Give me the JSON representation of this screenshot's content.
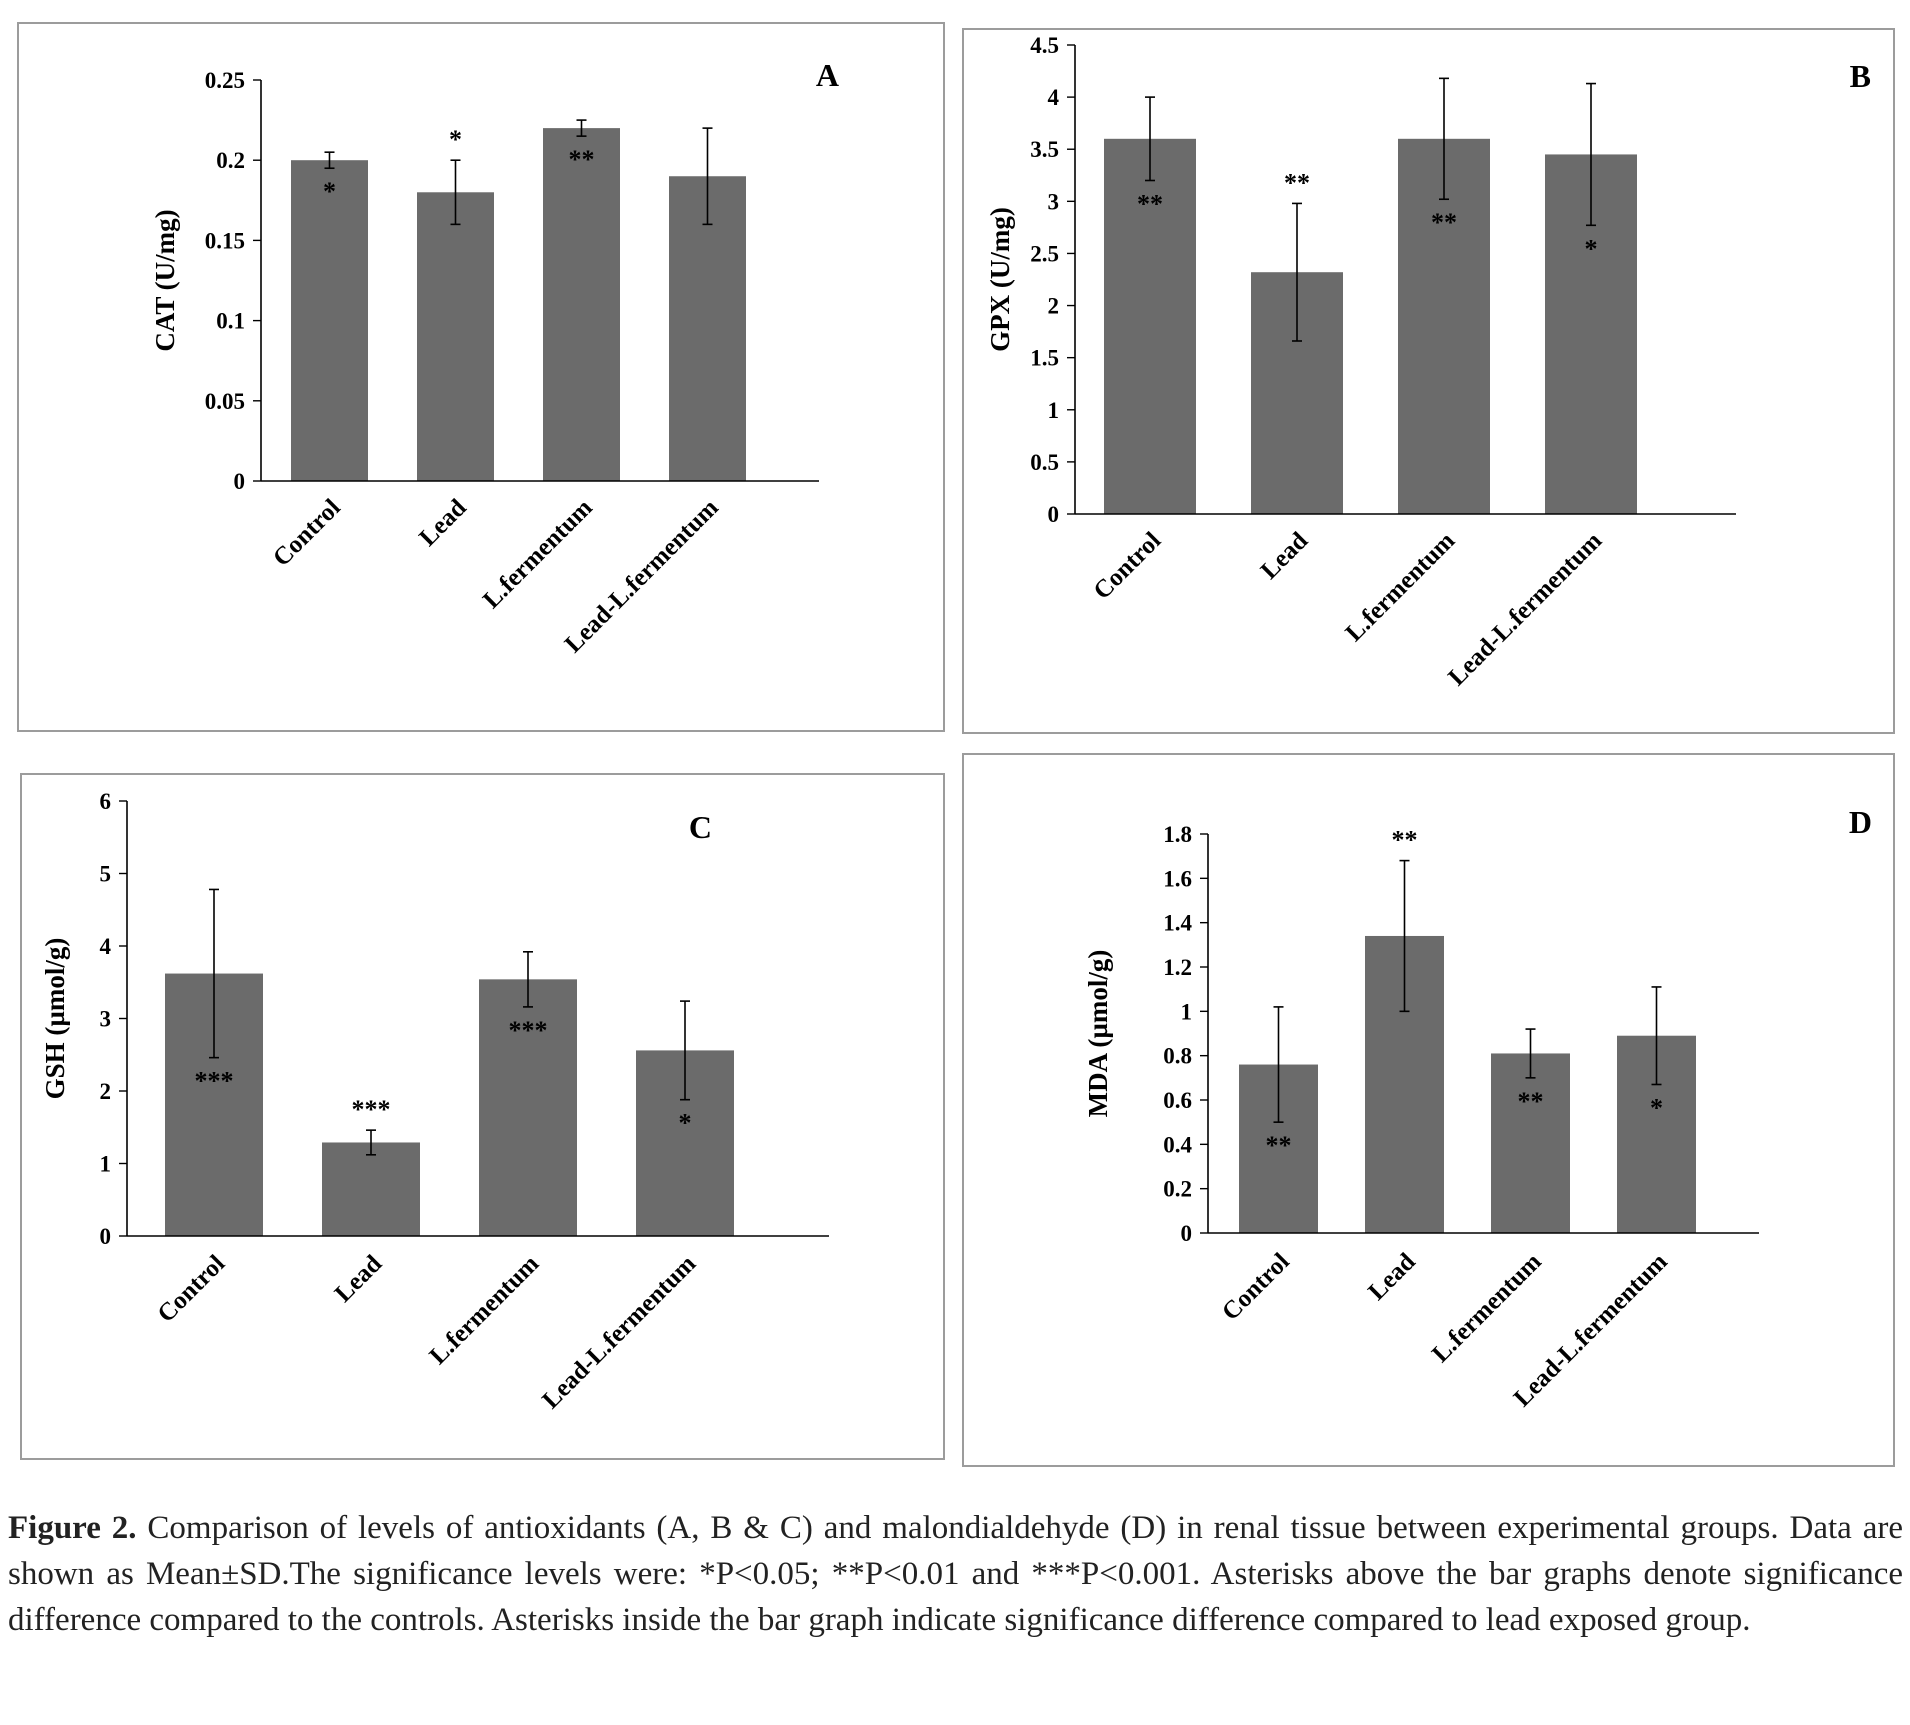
{
  "chart_data": [
    {
      "panel": "A",
      "type": "bar",
      "categories": [
        "Control",
        "Lead",
        "L.fermentum",
        "Lead-L.fermentum"
      ],
      "values": [
        0.2,
        0.18,
        0.22,
        0.19
      ],
      "errors": [
        0.005,
        0.02,
        0.005,
        0.03
      ],
      "stars_above": [
        "",
        "*",
        "",
        ""
      ],
      "stars_inside": [
        "*",
        "",
        "**",
        ""
      ],
      "ylabel": "CAT (U/mg)",
      "ylim": [
        0,
        0.25
      ],
      "yticks": [
        0,
        0.05,
        0.1,
        0.15,
        0.2,
        0.25
      ],
      "ytick_labels": [
        "0",
        "0.05",
        "0.1",
        "0.15",
        "0.2",
        "0.25"
      ],
      "color": "#6b6b6b"
    },
    {
      "panel": "B",
      "type": "bar",
      "categories": [
        "Control",
        "Lead",
        "L.fermentum",
        "Lead-L.fermentum"
      ],
      "values": [
        3.6,
        2.32,
        3.6,
        3.45
      ],
      "errors": [
        0.4,
        0.66,
        0.58,
        0.68
      ],
      "stars_above": [
        "",
        "**",
        "",
        ""
      ],
      "stars_inside": [
        "**",
        "",
        "**",
        "*"
      ],
      "ylabel": "GPX (U/mg)",
      "ylim": [
        0,
        4.5
      ],
      "yticks": [
        0,
        0.5,
        1,
        1.5,
        2,
        2.5,
        3,
        3.5,
        4,
        4.5
      ],
      "ytick_labels": [
        "0",
        "0.5",
        "1",
        "1.5",
        "2",
        "2.5",
        "3",
        "3.5",
        "4",
        "4.5"
      ],
      "color": "#6b6b6b"
    },
    {
      "panel": "C",
      "type": "bar",
      "categories": [
        "Control",
        "Lead",
        "L.fermentum",
        "Lead-L.fermentum"
      ],
      "values": [
        3.62,
        1.29,
        3.54,
        2.56
      ],
      "errors": [
        1.16,
        0.17,
        0.38,
        0.68
      ],
      "stars_above": [
        "",
        "***",
        "",
        ""
      ],
      "stars_inside": [
        "***",
        "",
        "***",
        "*"
      ],
      "ylabel": "GSH (µmol/g)",
      "ylim": [
        0,
        6
      ],
      "yticks": [
        0,
        1,
        2,
        3,
        4,
        5,
        6
      ],
      "ytick_labels": [
        "0",
        "1",
        "2",
        "3",
        "4",
        "5",
        "6"
      ],
      "color": "#6b6b6b"
    },
    {
      "panel": "D",
      "type": "bar",
      "categories": [
        "Control",
        "Lead",
        "L.fermentum",
        "Lead-L.fermentum"
      ],
      "values": [
        0.76,
        1.34,
        0.81,
        0.89
      ],
      "errors": [
        0.26,
        0.34,
        0.11,
        0.22
      ],
      "stars_above": [
        "",
        "**",
        "",
        ""
      ],
      "stars_inside": [
        "**",
        "",
        "**",
        "*"
      ],
      "ylabel": "MDA (µmol/g)",
      "ylim": [
        0,
        1.8
      ],
      "yticks": [
        0,
        0.2,
        0.4,
        0.6,
        0.8,
        1,
        1.2,
        1.4,
        1.6,
        1.8
      ],
      "ytick_labels": [
        "0",
        "0.2",
        "0.4",
        "0.6",
        "0.8",
        "1",
        "1.2",
        "1.4",
        "1.6",
        "1.8"
      ],
      "color": "#6b6b6b"
    }
  ],
  "caption": {
    "label": "Figure 2.",
    "text": " Comparison of levels of antioxidants (A, B & C) and malondialdehyde (D) in renal tissue between experimental groups. Data are shown as Mean±SD.The significance levels were: *P<0.05; **P<0.01 and ***P<0.001. Asterisks above the bar graphs denote significance difference compared to the controls. Asterisks inside the bar graph indicate significance difference compared to lead exposed group."
  }
}
